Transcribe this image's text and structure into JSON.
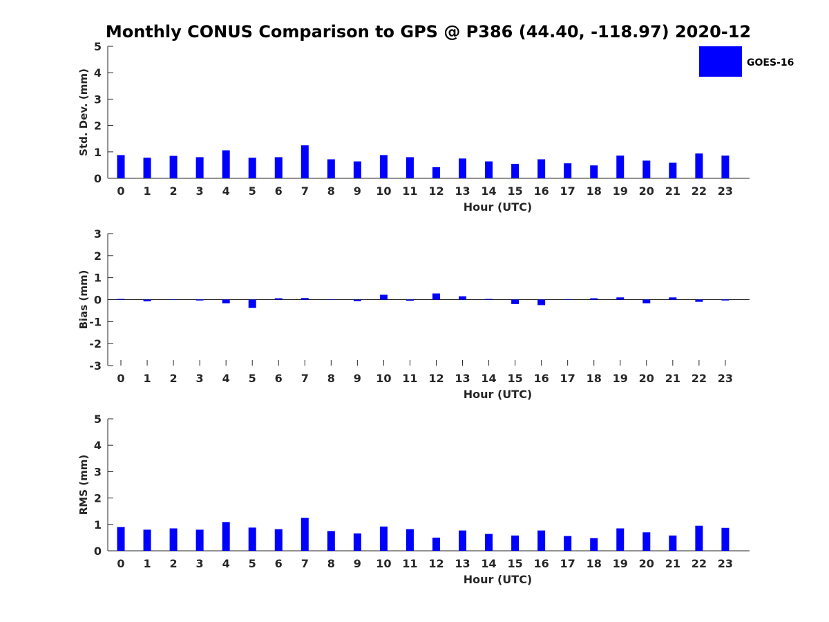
{
  "chart_data": {
    "type": "bar",
    "title": "Monthly CONUS Comparison to GPS @ P386 (44.40, -118.97) 2020-12",
    "bar_color": "#0000ff",
    "legend": {
      "label": "GOES-16",
      "placement": "top-right"
    },
    "categories": [
      "0",
      "1",
      "2",
      "3",
      "4",
      "5",
      "6",
      "7",
      "8",
      "9",
      "10",
      "11",
      "12",
      "13",
      "14",
      "15",
      "16",
      "17",
      "18",
      "19",
      "20",
      "21",
      "22",
      "23"
    ],
    "panels": [
      {
        "name": "std-dev",
        "xlabel": "Hour (UTC)",
        "ylabel": "Std. Dev. (mm)",
        "ylim": [
          0,
          5
        ],
        "yticks": [
          "0",
          "1",
          "2",
          "3",
          "4",
          "5"
        ],
        "values": [
          0.88,
          0.78,
          0.85,
          0.8,
          1.06,
          0.78,
          0.8,
          1.25,
          0.72,
          0.64,
          0.88,
          0.8,
          0.42,
          0.75,
          0.64,
          0.55,
          0.72,
          0.57,
          0.49,
          0.86,
          0.67,
          0.59,
          0.94,
          0.86
        ]
      },
      {
        "name": "bias",
        "xlabel": "Hour (UTC)",
        "ylabel": "Bias (mm)",
        "ylim": [
          -3,
          3
        ],
        "yticks": [
          "-3",
          "-2",
          "-1",
          "0",
          "1",
          "2",
          "3"
        ],
        "values": [
          0.03,
          -0.08,
          0.0,
          -0.04,
          -0.17,
          -0.38,
          0.06,
          0.07,
          -0.01,
          -0.07,
          0.22,
          -0.05,
          0.28,
          0.15,
          0.03,
          -0.2,
          -0.25,
          0.02,
          0.06,
          0.1,
          -0.17,
          0.1,
          -0.1,
          -0.04
        ]
      },
      {
        "name": "rms",
        "xlabel": "Hour (UTC)",
        "ylabel": "RMS (mm)",
        "ylim": [
          0,
          5
        ],
        "yticks": [
          "0",
          "1",
          "2",
          "3",
          "4",
          "5"
        ],
        "values": [
          0.9,
          0.8,
          0.85,
          0.8,
          1.09,
          0.88,
          0.82,
          1.25,
          0.75,
          0.66,
          0.92,
          0.82,
          0.5,
          0.77,
          0.64,
          0.58,
          0.77,
          0.56,
          0.48,
          0.85,
          0.7,
          0.58,
          0.95,
          0.87
        ]
      }
    ]
  }
}
